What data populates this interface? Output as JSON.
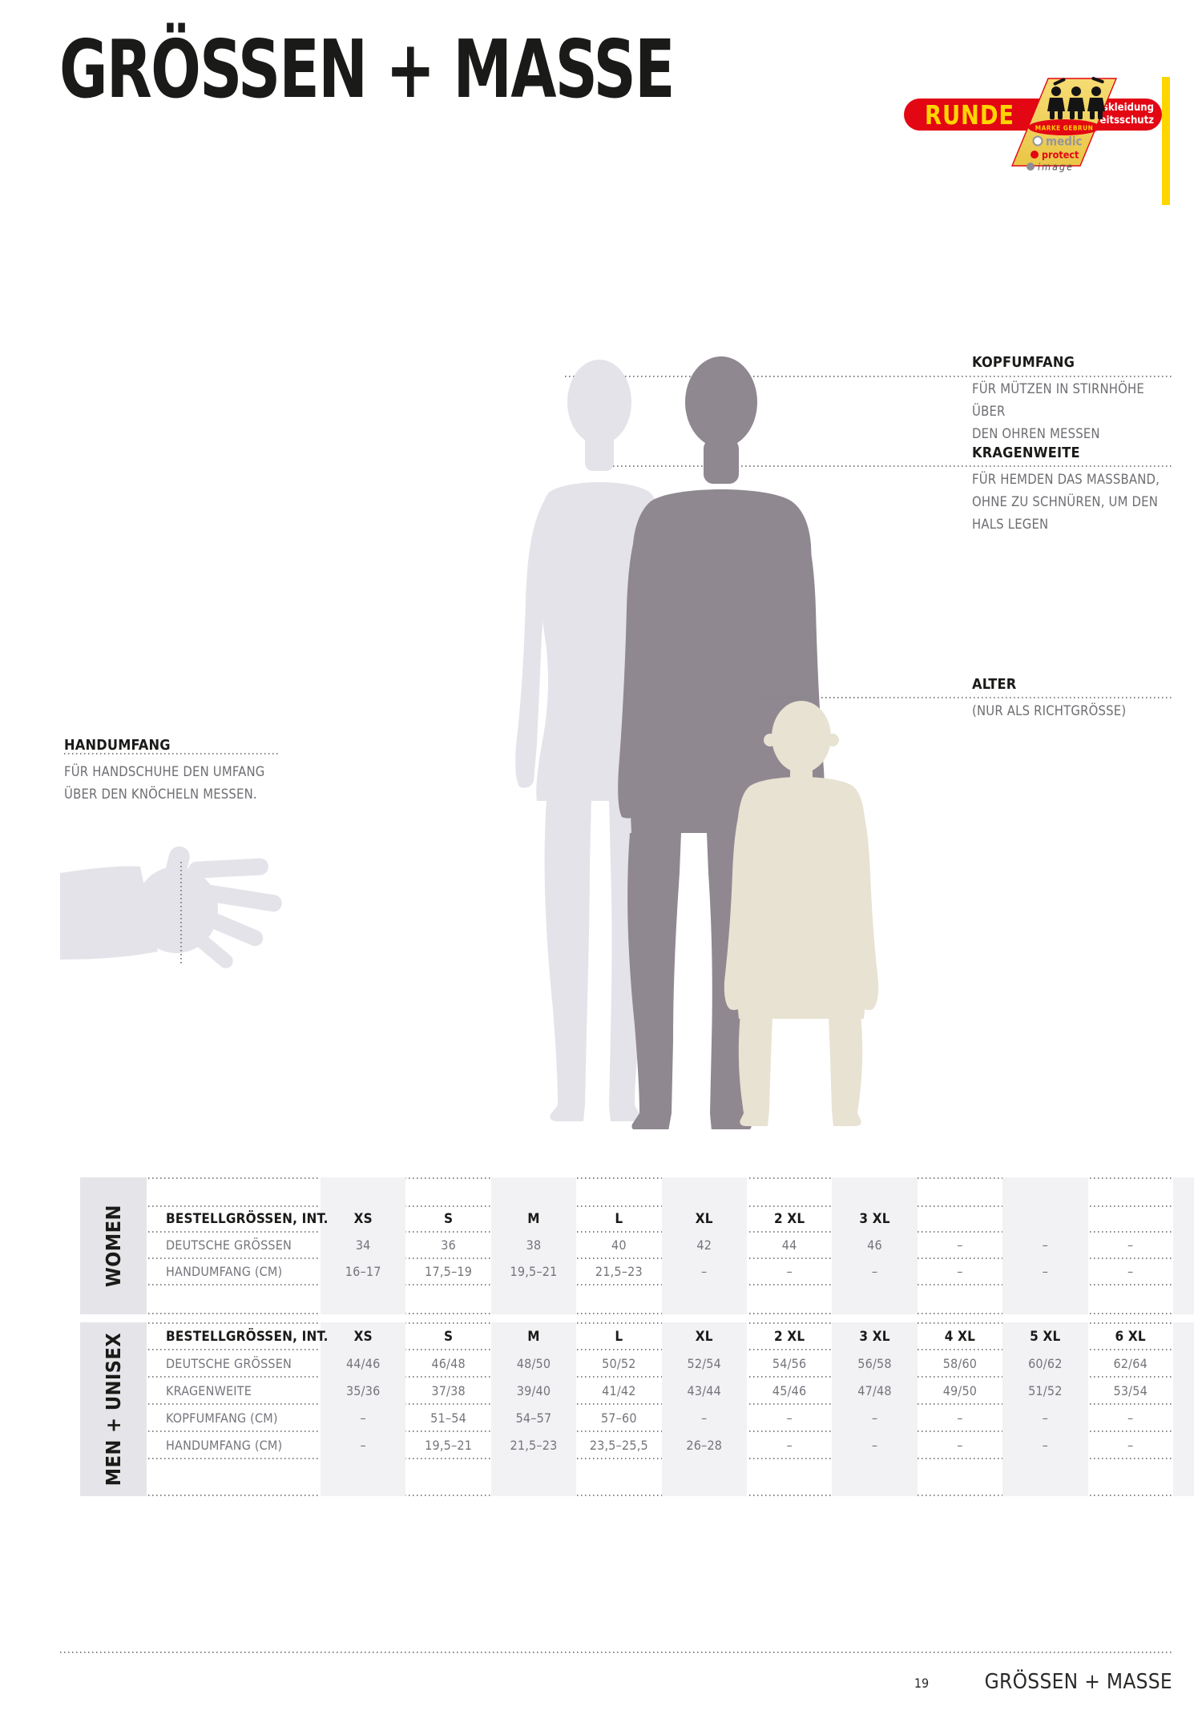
{
  "title": "GRÖSSEN + MASSE",
  "logo": {
    "brand": "RUNDE",
    "tagline_line1": "Berufskleidung",
    "tagline_line2": "Arbeitsschutz",
    "badge": "MARKE GEBRUN",
    "products": {
      "medic": "medic",
      "protect": "protect",
      "image": "image"
    },
    "colors": {
      "brand_red": "#E30613",
      "brand_yellow": "#FFD500"
    }
  },
  "annotations": {
    "kopfumfang": {
      "heading": "KOPFUMFANG",
      "lines": [
        "FÜR MÜTZEN IN STIRNHÖHE ÜBER",
        "DEN OHREN MESSEN"
      ]
    },
    "kragenweite": {
      "heading": "KRAGENWEITE",
      "lines": [
        "FÜR HEMDEN DAS MASSBAND,",
        "OHNE ZU SCHNÜREN, UM DEN",
        "HALS LEGEN"
      ]
    },
    "alter": {
      "heading": "ALTER",
      "lines": [
        "(NUR ALS RICHTGRÖSSE)"
      ]
    },
    "handumfang": {
      "heading": "HANDUMFANG",
      "lines": [
        "FÜR HANDSCHUHE DEN UMFANG",
        "ÜBER DEN KNÖCHELN MESSEN."
      ]
    }
  },
  "silhouette_colors": {
    "woman": "#E4E3E9",
    "man": "#8F8890",
    "child": "#E7E2D2"
  },
  "tables": {
    "women": {
      "section_label": "WOMEN",
      "header": [
        "BESTELLGRÖSSEN, INT.",
        "XS",
        "S",
        "M",
        "L",
        "XL",
        "2 XL",
        "3 XL",
        "",
        "",
        ""
      ],
      "rows": [
        {
          "label": "DEUTSCHE GRÖSSEN",
          "values": [
            "34",
            "36",
            "38",
            "40",
            "42",
            "44",
            "46",
            "–",
            "–",
            "–"
          ]
        },
        {
          "label": "HANDUMFANG (CM)",
          "values": [
            "16–17",
            "17,5–19",
            "19,5–21",
            "21,5–23",
            "–",
            "–",
            "–",
            "–",
            "–",
            "–"
          ]
        }
      ]
    },
    "men_unisex": {
      "section_label": "MEN + UNISEX",
      "header": [
        "BESTELLGRÖSSEN, INT.",
        "XS",
        "S",
        "M",
        "L",
        "XL",
        "2 XL",
        "3 XL",
        "4 XL",
        "5 XL",
        "6 XL"
      ],
      "rows": [
        {
          "label": "DEUTSCHE GRÖSSEN",
          "values": [
            "44/46",
            "46/48",
            "48/50",
            "50/52",
            "52/54",
            "54/56",
            "56/58",
            "58/60",
            "60/62",
            "62/64"
          ]
        },
        {
          "label": "KRAGENWEITE",
          "values": [
            "35/36",
            "37/38",
            "39/40",
            "41/42",
            "43/44",
            "45/46",
            "47/48",
            "49/50",
            "51/52",
            "53/54"
          ]
        },
        {
          "label": "KOPFUMFANG (CM)",
          "values": [
            "–",
            "51–54",
            "54–57",
            "57–60",
            "–",
            "–",
            "–",
            "–",
            "–",
            "–"
          ]
        },
        {
          "label": "HANDUMFANG (CM)",
          "values": [
            "–",
            "19,5–21",
            "21,5–23",
            "23,5–25,5",
            "26–28",
            "–",
            "–",
            "–",
            "–",
            "–"
          ]
        }
      ]
    }
  },
  "footer": {
    "page_number": "19",
    "title": "GRÖSSEN + MASSE"
  }
}
